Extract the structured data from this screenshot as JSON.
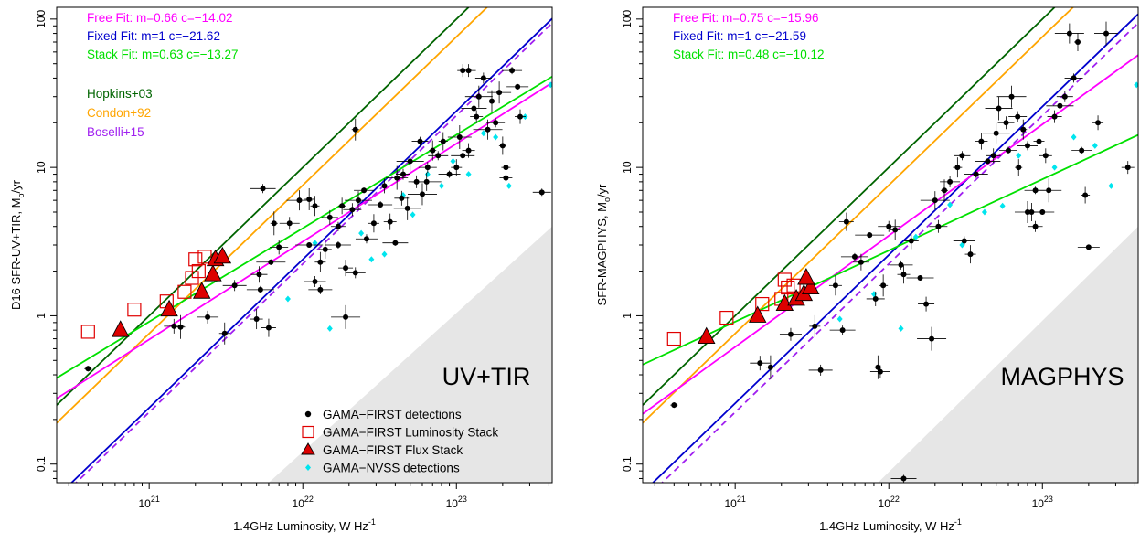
{
  "chart_data": [
    {
      "type": "scatter",
      "panel_label": "UV+TIR",
      "xlabel": "1.4GHz Luminosity, W Hz",
      "xlabel_sup": "-1",
      "ylabel": "D16 SFR-UV+TIR, M",
      "ylabel_sub": "o",
      "ylabel_tail": "/yr",
      "x_scale": "log",
      "y_scale": "log",
      "xlim": [
        2.5e+20,
        4.2e+23
      ],
      "ylim": [
        0.075,
        120
      ],
      "x_ticks": [
        {
          "value": 1e+21,
          "base": "10",
          "exp": "21"
        },
        {
          "value": 1e+22,
          "base": "10",
          "exp": "22"
        },
        {
          "value": 1e+23,
          "base": "10",
          "exp": "23"
        }
      ],
      "y_ticks": [
        {
          "value": 0.1,
          "label": "0.1"
        },
        {
          "value": 1,
          "label": "1"
        },
        {
          "value": 10,
          "label": "10"
        },
        {
          "value": 100,
          "label": "100"
        }
      ],
      "fit_labels": [
        {
          "text": "Free Fit: m=0.66  c=−14.02",
          "color": "#ff00ff"
        },
        {
          "text": "Fixed Fit: m=1  c=−21.62",
          "color": "#0000cd"
        },
        {
          "text": "Stack Fit: m=0.63  c=−13.27",
          "color": "#00e000"
        }
      ],
      "ref_labels": [
        {
          "text": "Hopkins+03",
          "color": "#006400"
        },
        {
          "text": "Condon+92",
          "color": "#ffa500"
        },
        {
          "text": "Boselli+15",
          "color": "#a020f0"
        }
      ],
      "legend": [
        {
          "label": "GAMA−FIRST detections",
          "marker": "dot"
        },
        {
          "label": "GAMA−FIRST Luminosity Stack",
          "marker": "open-square"
        },
        {
          "label": "GAMA−FIRST Flux Stack",
          "marker": "triangle"
        },
        {
          "label": "GAMA−NVSS detections",
          "marker": "diamond"
        }
      ],
      "lines": [
        {
          "name": "Free Fit",
          "m": 0.66,
          "c": -14.02,
          "color": "#ff00ff",
          "dash": false
        },
        {
          "name": "Fixed Fit",
          "m": 1,
          "c": -21.62,
          "color": "#0000cd",
          "dash": false
        },
        {
          "name": "Stack Fit",
          "m": 0.63,
          "c": -13.27,
          "color": "#00e000",
          "dash": false
        },
        {
          "name": "Hopkins+03",
          "m": 1,
          "c": -21.0,
          "color": "#006400",
          "dash": false
        },
        {
          "name": "Condon+92",
          "m": 1,
          "c": -21.12,
          "color": "#ffa500",
          "dash": false
        },
        {
          "name": "Boselli+15",
          "m": 1,
          "c": -21.65,
          "color": "#a020f0",
          "dash": true
        }
      ],
      "shade_vertices": [
        [
          6e+21,
          0.075
        ],
        [
          4.2e+23,
          0.075
        ],
        [
          4.2e+23,
          4
        ]
      ],
      "luminosity_stack": [
        [
          4e+20,
          0.78
        ],
        [
          8e+20,
          1.1
        ],
        [
          1.3e+21,
          1.25
        ],
        [
          1.7e+21,
          1.45
        ],
        [
          1.9e+21,
          1.8
        ],
        [
          2.1e+21,
          2.0
        ],
        [
          2e+21,
          2.4
        ],
        [
          2.3e+21,
          2.5
        ]
      ],
      "flux_stack": [
        [
          6.5e+20,
          0.8
        ],
        [
          1.35e+21,
          1.1
        ],
        [
          2.2e+21,
          1.45
        ],
        [
          2.6e+21,
          1.9
        ],
        [
          2.7e+21,
          2.4
        ],
        [
          3e+21,
          2.5
        ]
      ],
      "nvss": [
        [
          5e+21,
          0.95
        ],
        [
          8e+21,
          1.3
        ],
        [
          1.2e+22,
          3.1
        ],
        [
          1.5e+22,
          0.82
        ],
        [
          2.4e+22,
          3.6
        ],
        [
          2.8e+22,
          2.4
        ],
        [
          3.4e+22,
          2.6
        ],
        [
          4.5e+22,
          6.5
        ],
        [
          5.2e+22,
          4.8
        ],
        [
          6.5e+22,
          9
        ],
        [
          8e+22,
          7.5
        ],
        [
          9.5e+22,
          11
        ],
        [
          1.2e+23,
          9
        ],
        [
          1.5e+23,
          17
        ],
        [
          1.8e+23,
          16
        ],
        [
          2.2e+23,
          7.5
        ],
        [
          2.8e+23,
          22
        ],
        [
          4.1e+23,
          36
        ]
      ],
      "detections": [
        [
          4e+20,
          0.44
        ],
        [
          1.45e+21,
          0.85
        ],
        [
          1.6e+21,
          0.84
        ],
        [
          2.4e+21,
          0.98
        ],
        [
          3.1e+21,
          0.76
        ],
        [
          3.6e+21,
          1.6
        ],
        [
          5e+21,
          0.95
        ],
        [
          5.5e+21,
          7.2
        ],
        [
          6e+21,
          0.83
        ],
        [
          5.3e+21,
          1.5
        ],
        [
          5.2e+21,
          1.9
        ],
        [
          6.2e+21,
          2.3
        ],
        [
          7e+21,
          2.9
        ],
        [
          6.5e+21,
          4.2
        ],
        [
          8.2e+21,
          4.2
        ],
        [
          1.1e+22,
          6.1
        ],
        [
          1.2e+22,
          1.7
        ],
        [
          1.3e+22,
          2.3
        ],
        [
          1.3e+22,
          1.5
        ],
        [
          1.4e+22,
          2.8
        ],
        [
          1.7e+22,
          3.0
        ],
        [
          1.9e+22,
          2.1
        ],
        [
          1.1e+22,
          3.0
        ],
        [
          1.5e+22,
          4.6
        ],
        [
          1.9e+22,
          0.98
        ],
        [
          2.1e+22,
          5.2
        ],
        [
          2.2e+22,
          18
        ],
        [
          2.2e+22,
          1.95
        ],
        [
          1.2e+22,
          5.5
        ],
        [
          2.6e+22,
          3.3
        ],
        [
          2.9e+22,
          4.2
        ],
        [
          3.2e+22,
          5.6
        ],
        [
          3.7e+22,
          4.3
        ],
        [
          4e+22,
          3.1
        ],
        [
          4.4e+22,
          6.2
        ],
        [
          4.8e+22,
          5.3
        ],
        [
          5.5e+22,
          8
        ],
        [
          6e+22,
          6.6
        ],
        [
          6.5e+22,
          10
        ],
        [
          7e+22,
          13
        ],
        [
          7.6e+22,
          12
        ],
        [
          8.2e+22,
          15
        ],
        [
          9e+22,
          9
        ],
        [
          1e+23,
          10
        ],
        [
          1.1e+23,
          12
        ],
        [
          1.2e+23,
          13
        ],
        [
          1.3e+23,
          25
        ],
        [
          1.2e+23,
          45
        ],
        [
          1.4e+23,
          30
        ],
        [
          1.5e+23,
          40
        ],
        [
          1.6e+23,
          18
        ],
        [
          1.8e+23,
          20
        ],
        [
          2e+23,
          14
        ],
        [
          2.3e+23,
          45
        ],
        [
          2.1e+23,
          10
        ],
        [
          2.5e+23,
          35
        ],
        [
          2.6e+23,
          22
        ],
        [
          1.05e+23,
          16
        ],
        [
          1.35e+23,
          22
        ],
        [
          1.7e+23,
          28
        ],
        [
          4.5e+22,
          9
        ],
        [
          5e+22,
          11
        ],
        [
          5.8e+22,
          15
        ],
        [
          6.4e+22,
          8
        ],
        [
          3.6e+23,
          6.8
        ],
        [
          1.8e+22,
          5.5
        ],
        [
          2.5e+22,
          7
        ],
        [
          3.4e+22,
          7.5
        ],
        [
          4.1e+22,
          8.5
        ],
        [
          1.1e+23,
          45
        ],
        [
          1.9e+23,
          32
        ],
        [
          2.1e+23,
          8.5
        ],
        [
          9.5e+21,
          6
        ],
        [
          1.7e+22,
          4
        ],
        [
          2.3e+22,
          6
        ]
      ]
    },
    {
      "type": "scatter",
      "panel_label": "MAGPHYS",
      "xlabel": "1.4GHz Luminosity, W Hz",
      "xlabel_sup": "-1",
      "ylabel": "SFR-MAGPHYS, M",
      "ylabel_sub": "o",
      "ylabel_tail": "/yr",
      "x_scale": "log",
      "y_scale": "log",
      "xlim": [
        2.5e+20,
        4.2e+23
      ],
      "ylim": [
        0.075,
        120
      ],
      "x_ticks": [
        {
          "value": 1e+21,
          "base": "10",
          "exp": "21"
        },
        {
          "value": 1e+22,
          "base": "10",
          "exp": "22"
        },
        {
          "value": 1e+23,
          "base": "10",
          "exp": "23"
        }
      ],
      "y_ticks": [
        {
          "value": 0.1,
          "label": "0.1"
        },
        {
          "value": 1,
          "label": "1"
        },
        {
          "value": 10,
          "label": "10"
        },
        {
          "value": 100,
          "label": "100"
        }
      ],
      "fit_labels": [
        {
          "text": "Free Fit: m=0.75  c=−15.96",
          "color": "#ff00ff"
        },
        {
          "text": "Fixed Fit: m=1  c=−21.59",
          "color": "#0000cd"
        },
        {
          "text": "Stack Fit: m=0.48  c=−10.12",
          "color": "#00e000"
        }
      ],
      "ref_labels": [],
      "legend": [],
      "lines": [
        {
          "name": "Free Fit",
          "m": 0.75,
          "c": -15.96,
          "color": "#ff00ff",
          "dash": false
        },
        {
          "name": "Fixed Fit",
          "m": 1,
          "c": -21.59,
          "color": "#0000cd",
          "dash": false
        },
        {
          "name": "Stack Fit",
          "m": 0.48,
          "c": -10.12,
          "color": "#00e000",
          "dash": false
        },
        {
          "name": "Hopkins+03",
          "m": 1,
          "c": -21.0,
          "color": "#006400",
          "dash": false
        },
        {
          "name": "Condon+92",
          "m": 1,
          "c": -21.12,
          "color": "#ffa500",
          "dash": false
        },
        {
          "name": "Boselli+15",
          "m": 1,
          "c": -21.65,
          "color": "#a020f0",
          "dash": true
        }
      ],
      "shade_vertices": [
        [
          8.5e+21,
          0.075
        ],
        [
          4.2e+23,
          0.075
        ],
        [
          4.2e+23,
          4
        ]
      ],
      "luminosity_stack": [
        [
          4e+20,
          0.7
        ],
        [
          8.8e+20,
          0.97
        ],
        [
          1.5e+21,
          1.2
        ],
        [
          2e+21,
          1.3
        ],
        [
          2.2e+21,
          1.55
        ],
        [
          2.4e+21,
          1.6
        ],
        [
          2.1e+21,
          1.75
        ]
      ],
      "flux_stack": [
        [
          6.5e+20,
          0.72
        ],
        [
          1.4e+21,
          1.0
        ],
        [
          2.1e+21,
          1.2
        ],
        [
          2.5e+21,
          1.3
        ],
        [
          2.8e+21,
          1.4
        ],
        [
          3.1e+21,
          1.55
        ],
        [
          2.9e+21,
          1.8
        ]
      ],
      "nvss": [
        [
          4.8e+21,
          0.95
        ],
        [
          8e+21,
          1.4
        ],
        [
          1.2e+22,
          0.82
        ],
        [
          1.5e+22,
          3.4
        ],
        [
          2.5e+22,
          5.6
        ],
        [
          3e+22,
          3
        ],
        [
          4.2e+22,
          5
        ],
        [
          5.5e+22,
          5.5
        ],
        [
          7e+22,
          12
        ],
        [
          9e+22,
          7
        ],
        [
          1.2e+23,
          10
        ],
        [
          1.6e+23,
          16
        ],
        [
          2.2e+23,
          14
        ],
        [
          2.8e+23,
          7.5
        ],
        [
          4.1e+23,
          36
        ]
      ],
      "detections": [
        [
          4e+20,
          0.25
        ],
        [
          1.45e+21,
          0.48
        ],
        [
          1.7e+21,
          0.45
        ],
        [
          2.3e+21,
          0.75
        ],
        [
          3.3e+21,
          0.85
        ],
        [
          3.6e+21,
          0.43
        ],
        [
          4.5e+21,
          1.6
        ],
        [
          5e+21,
          0.8
        ],
        [
          5.3e+21,
          4.3
        ],
        [
          6e+21,
          2.5
        ],
        [
          6.6e+21,
          2.3
        ],
        [
          7.5e+21,
          3.5
        ],
        [
          8.2e+21,
          1.3
        ],
        [
          8.5e+21,
          0.45
        ],
        [
          8.8e+21,
          0.42
        ],
        [
          9.2e+21,
          1.6
        ],
        [
          1e+22,
          4
        ],
        [
          1.1e+22,
          3.8
        ],
        [
          1.2e+22,
          2.2
        ],
        [
          1.25e+22,
          1.9
        ],
        [
          1.25e+22,
          0.08
        ],
        [
          1.4e+22,
          3.2
        ],
        [
          1.6e+22,
          1.8
        ],
        [
          1.75e+22,
          1.2
        ],
        [
          1.9e+22,
          0.7
        ],
        [
          2.1e+22,
          4
        ],
        [
          2.3e+22,
          7
        ],
        [
          2.5e+22,
          8
        ],
        [
          2.8e+22,
          10
        ],
        [
          3.1e+22,
          3.2
        ],
        [
          3.4e+22,
          2.6
        ],
        [
          3.7e+22,
          9
        ],
        [
          4e+22,
          15
        ],
        [
          4.4e+22,
          11
        ],
        [
          4.8e+22,
          12
        ],
        [
          5.2e+22,
          25
        ],
        [
          5.8e+22,
          20
        ],
        [
          6.3e+22,
          30
        ],
        [
          6.9e+22,
          22
        ],
        [
          7.5e+22,
          18
        ],
        [
          8e+22,
          14
        ],
        [
          8.5e+22,
          5
        ],
        [
          9e+22,
          7
        ],
        [
          9.5e+22,
          15
        ],
        [
          1e+23,
          5
        ],
        [
          1.05e+23,
          12
        ],
        [
          1.1e+23,
          7
        ],
        [
          1.2e+23,
          22
        ],
        [
          1.3e+23,
          26
        ],
        [
          1.4e+23,
          30
        ],
        [
          1.5e+23,
          80
        ],
        [
          1.6e+23,
          40
        ],
        [
          1.7e+23,
          70
        ],
        [
          1.8e+23,
          13
        ],
        [
          1.9e+23,
          6.5
        ],
        [
          2e+23,
          2.9
        ],
        [
          2.3e+23,
          20
        ],
        [
          2.6e+23,
          80
        ],
        [
          3.6e+23,
          10
        ],
        [
          8e+22,
          5
        ],
        [
          9e+22,
          4
        ],
        [
          5e+22,
          17
        ],
        [
          3e+22,
          12
        ],
        [
          2e+22,
          6
        ],
        [
          6e+22,
          13
        ],
        [
          7e+22,
          10
        ]
      ]
    }
  ]
}
